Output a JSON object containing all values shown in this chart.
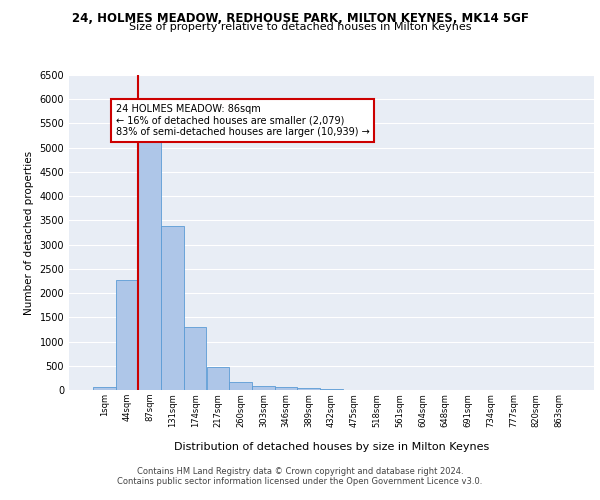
{
  "title_line1": "24, HOLMES MEADOW, REDHOUSE PARK, MILTON KEYNES, MK14 5GF",
  "title_line2": "Size of property relative to detached houses in Milton Keynes",
  "xlabel": "Distribution of detached houses by size in Milton Keynes",
  "ylabel": "Number of detached properties",
  "footer_line1": "Contains HM Land Registry data © Crown copyright and database right 2024.",
  "footer_line2": "Contains public sector information licensed under the Open Government Licence v3.0.",
  "annotation_line1": "24 HOLMES MEADOW: 86sqm",
  "annotation_line2": "← 16% of detached houses are smaller (2,079)",
  "annotation_line3": "83% of semi-detached houses are larger (10,939) →",
  "bar_labels": [
    "1sqm",
    "44sqm",
    "87sqm",
    "131sqm",
    "174sqm",
    "217sqm",
    "260sqm",
    "303sqm",
    "346sqm",
    "389sqm",
    "432sqm",
    "475sqm",
    "518sqm",
    "561sqm",
    "604sqm",
    "648sqm",
    "691sqm",
    "734sqm",
    "777sqm",
    "820sqm",
    "863sqm"
  ],
  "bar_values": [
    70,
    2280,
    5440,
    3380,
    1310,
    480,
    165,
    85,
    55,
    35,
    20,
    10,
    5,
    3,
    2,
    2,
    1,
    1,
    1,
    1,
    1
  ],
  "bar_color": "#aec6e8",
  "bar_edge_color": "#5b9bd5",
  "vline_color": "#cc0000",
  "annotation_box_color": "#cc0000",
  "annotation_fill": "#ffffff",
  "ylim": [
    0,
    6500
  ],
  "yticks": [
    0,
    500,
    1000,
    1500,
    2000,
    2500,
    3000,
    3500,
    4000,
    4500,
    5000,
    5500,
    6000,
    6500
  ],
  "bg_color": "#e8edf5",
  "grid_color": "#ffffff",
  "fig_bg": "#ffffff"
}
